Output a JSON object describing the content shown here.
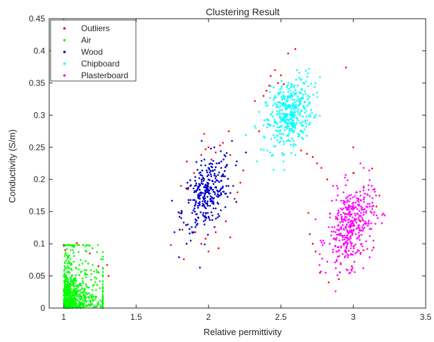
{
  "chart_data": {
    "type": "scatter",
    "title": "Clustering Result",
    "xlabel": "Relative permittivity",
    "ylabel": "Conductivity (S/m)",
    "xlim": [
      0.9,
      3.5
    ],
    "ylim": [
      0,
      0.45
    ],
    "xticks": [
      1,
      1.5,
      2,
      2.5,
      3,
      3.5
    ],
    "xtick_labels": [
      "1",
      "1.5",
      "2",
      "2.5",
      "3",
      "3.5"
    ],
    "yticks": [
      0,
      0.05,
      0.1,
      0.15,
      0.2,
      0.25,
      0.3,
      0.35,
      0.4,
      0.45
    ],
    "ytick_labels": [
      "0",
      "0.05",
      "0.1",
      "0.15",
      "0.2",
      "0.25",
      "0.3",
      "0.35",
      "0.4",
      "0.45"
    ],
    "grid": false,
    "legend_position": "top-left",
    "series": [
      {
        "name": "Outliers",
        "color": "#ff0000",
        "points": [
          [
            1.0,
            0.098
          ],
          [
            1.01,
            0.09
          ],
          [
            1.09,
            0.101
          ],
          [
            1.18,
            0.085
          ],
          [
            1.24,
            0.065
          ],
          [
            1.31,
            0.05
          ],
          [
            1.3,
            0.067
          ],
          [
            1.74,
            0.098
          ],
          [
            1.83,
            0.076
          ],
          [
            1.8,
            0.148
          ],
          [
            1.82,
            0.122
          ],
          [
            1.81,
            0.19
          ],
          [
            1.86,
            0.185
          ],
          [
            1.85,
            0.228
          ],
          [
            1.9,
            0.21
          ],
          [
            1.91,
            0.118
          ],
          [
            1.95,
            0.238
          ],
          [
            1.98,
            0.247
          ],
          [
            1.97,
            0.271
          ],
          [
            2.0,
            0.25
          ],
          [
            2.02,
            0.231
          ],
          [
            2.05,
            0.242
          ],
          [
            2.08,
            0.253
          ],
          [
            2.1,
            0.257
          ],
          [
            2.14,
            0.275
          ],
          [
            2.15,
            0.238
          ],
          [
            2.18,
            0.17
          ],
          [
            2.2,
            0.18
          ],
          [
            2.22,
            0.195
          ],
          [
            2.24,
            0.214
          ],
          [
            1.95,
            0.1
          ],
          [
            1.98,
            0.108
          ],
          [
            2.0,
            0.088
          ],
          [
            2.07,
            0.093
          ],
          [
            2.12,
            0.135
          ],
          [
            2.15,
            0.11
          ],
          [
            2.05,
            0.118
          ],
          [
            2.32,
            0.322
          ],
          [
            2.35,
            0.275
          ],
          [
            2.38,
            0.33
          ],
          [
            2.4,
            0.338
          ],
          [
            2.42,
            0.346
          ],
          [
            2.43,
            0.361
          ],
          [
            2.46,
            0.37
          ],
          [
            2.48,
            0.35
          ],
          [
            2.5,
            0.362
          ],
          [
            2.52,
            0.348
          ],
          [
            2.55,
            0.396
          ],
          [
            2.6,
            0.403
          ],
          [
            2.64,
            0.245
          ],
          [
            2.68,
            0.24
          ],
          [
            2.72,
            0.235
          ],
          [
            2.75,
            0.225
          ],
          [
            2.78,
            0.218
          ],
          [
            2.82,
            0.2
          ],
          [
            2.69,
            0.148
          ],
          [
            2.7,
            0.115
          ],
          [
            2.72,
            0.1
          ],
          [
            2.74,
            0.088
          ],
          [
            2.77,
            0.055
          ],
          [
            2.83,
            0.04
          ],
          [
            2.9,
            0.045
          ],
          [
            2.99,
            0.065
          ],
          [
            3.07,
            0.09
          ],
          [
            3.14,
            0.094
          ],
          [
            3.0,
            0.21
          ],
          [
            3.05,
            0.135
          ],
          [
            3.13,
            0.217
          ],
          [
            3.16,
            0.158
          ],
          [
            3.18,
            0.175
          ],
          [
            3.0,
            0.25
          ],
          [
            2.95,
            0.374
          ]
        ]
      },
      {
        "name": "Air",
        "color": "#00ff00",
        "points": []
      },
      {
        "name": "Wood",
        "color": "#0000cc",
        "points": []
      },
      {
        "name": "Chipboard",
        "color": "#00ffff",
        "points": []
      },
      {
        "name": "Plasterboard",
        "color": "#ff00ff",
        "points": []
      }
    ],
    "cluster_distributions": [
      {
        "series": "Air",
        "count": 700,
        "x_range": [
          1.0,
          1.27
        ],
        "y_range": [
          0.0,
          0.098
        ],
        "x_decay": 0.09,
        "y_decay": 0.028
      },
      {
        "series": "Wood",
        "count": 320,
        "x_mean": 1.99,
        "x_sd": 0.085,
        "y_mean": 0.178,
        "y_sd": 0.03,
        "correlation": 0.45
      },
      {
        "series": "Chipboard",
        "count": 420,
        "x_mean": 2.56,
        "x_sd": 0.08,
        "y_mean": 0.302,
        "y_sd": 0.028,
        "correlation": 0.35
      },
      {
        "series": "Plasterboard",
        "count": 420,
        "x_mean": 2.98,
        "x_sd": 0.08,
        "y_mean": 0.128,
        "y_sd": 0.032,
        "correlation": 0.3
      }
    ]
  }
}
